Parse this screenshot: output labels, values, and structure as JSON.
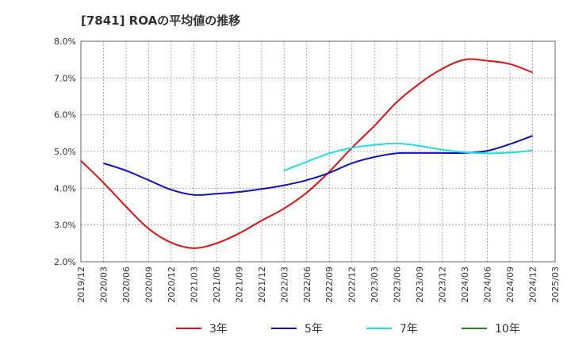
{
  "chart_data": {
    "type": "line",
    "title": "[7841]  ROAの平均値の推移",
    "xlabel": "",
    "ylabel": "",
    "ylim": [
      2.0,
      8.0
    ],
    "yticks": [
      "2.0%",
      "3.0%",
      "4.0%",
      "5.0%",
      "6.0%",
      "7.0%",
      "8.0%"
    ],
    "x": [
      "2019/12",
      "2020/03",
      "2020/06",
      "2020/09",
      "2020/12",
      "2021/03",
      "2021/06",
      "2021/09",
      "2021/12",
      "2022/03",
      "2022/06",
      "2022/09",
      "2022/12",
      "2023/03",
      "2023/06",
      "2023/09",
      "2023/12",
      "2024/03",
      "2024/06",
      "2024/09",
      "2024/12",
      "2025/03"
    ],
    "grid": true,
    "legend_position": "bottom",
    "series": [
      {
        "name": "3年",
        "color": "#dd1111",
        "values": [
          4.75,
          4.15,
          3.5,
          2.9,
          2.52,
          2.37,
          2.5,
          2.77,
          3.12,
          3.45,
          3.88,
          4.45,
          5.1,
          5.7,
          6.35,
          6.85,
          7.25,
          7.5,
          7.47,
          7.38,
          7.15,
          null
        ]
      },
      {
        "name": "5年",
        "color": "#1111bb",
        "values": [
          null,
          4.68,
          4.48,
          4.22,
          3.96,
          3.82,
          3.85,
          3.9,
          3.98,
          4.08,
          4.22,
          4.42,
          4.68,
          4.85,
          4.95,
          4.96,
          4.96,
          4.96,
          5.02,
          5.2,
          5.43,
          null
        ]
      },
      {
        "name": "7年",
        "color": "#22dddd",
        "values": [
          null,
          null,
          null,
          null,
          null,
          null,
          null,
          null,
          null,
          4.48,
          4.72,
          4.95,
          5.1,
          5.18,
          5.22,
          5.15,
          5.05,
          4.98,
          4.95,
          4.97,
          5.03,
          null
        ]
      },
      {
        "name": "10年",
        "color": "#228822",
        "values": [
          null,
          null,
          null,
          null,
          null,
          null,
          null,
          null,
          null,
          null,
          null,
          null,
          null,
          null,
          null,
          null,
          null,
          null,
          null,
          null,
          null,
          null
        ]
      }
    ]
  }
}
